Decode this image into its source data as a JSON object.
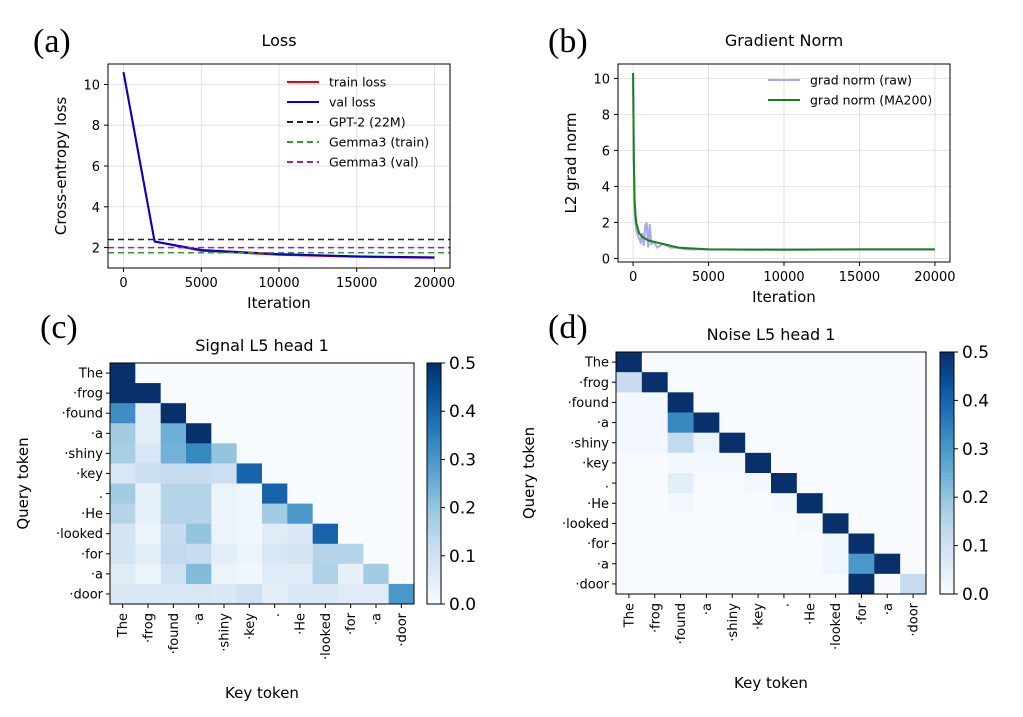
{
  "panels": {
    "a": "(a)",
    "b": "(b)",
    "c": "(c)",
    "d": "(d)"
  },
  "chart_data": [
    {
      "type": "line",
      "title": "Loss",
      "xlabel": "Iteration",
      "ylabel": "Cross-entropy loss",
      "xlim": [
        -1000,
        21000
      ],
      "ylim": [
        1.0,
        11.0
      ],
      "xticks": [
        0,
        5000,
        10000,
        15000,
        20000
      ],
      "yticks": [
        2,
        4,
        6,
        8,
        10
      ],
      "grid": true,
      "legend_position": "top-right",
      "series": [
        {
          "name": "train loss",
          "color": "#ff0000",
          "style": "solid",
          "x": [
            0,
            2000,
            5000,
            10000,
            15000,
            20000
          ],
          "y": [
            10.6,
            2.3,
            1.85,
            1.65,
            1.55,
            1.5
          ]
        },
        {
          "name": "val loss",
          "color": "#0000dd",
          "style": "solid",
          "x": [
            0,
            2000,
            5000,
            10000,
            15000,
            20000
          ],
          "y": [
            10.6,
            2.3,
            1.88,
            1.68,
            1.57,
            1.52
          ]
        },
        {
          "name": "GPT-2 (22M)",
          "color": "#222222",
          "style": "dashed",
          "hline": 2.4
        },
        {
          "name": "Gemma3 (train)",
          "color": "#2ca02c",
          "style": "dashed",
          "hline": 1.75
        },
        {
          "name": "Gemma3 (val)",
          "color": "#a020a0",
          "style": "dashed",
          "hline": 2.0
        }
      ]
    },
    {
      "type": "line",
      "title": "Gradient Norm",
      "xlabel": "Iteration",
      "ylabel": "L2 grad norm",
      "xlim": [
        -1000,
        21000
      ],
      "ylim": [
        -0.2,
        10.8
      ],
      "xticks": [
        0,
        5000,
        10000,
        15000,
        20000
      ],
      "yticks": [
        0,
        2,
        4,
        6,
        8,
        10
      ],
      "grid": true,
      "legend_position": "top-right",
      "series": [
        {
          "name": "grad norm (raw)",
          "color": "#a8a8f0",
          "style": "solid",
          "x": [
            0,
            50,
            100,
            200,
            300,
            400,
            500,
            600,
            700,
            800,
            900,
            1000,
            1100,
            1200,
            1400,
            1600,
            1800,
            2000,
            2500,
            3000,
            3500,
            5000,
            10000,
            15000,
            20000
          ],
          "y": [
            10.2,
            6.0,
            2.5,
            1.6,
            1.3,
            1.1,
            0.9,
            1.4,
            0.7,
            1.8,
            2.0,
            0.6,
            1.9,
            0.8,
            0.9,
            0.6,
            0.7,
            0.8,
            0.6,
            0.6,
            0.5,
            0.5,
            0.5,
            0.5,
            0.5
          ]
        },
        {
          "name": "grad norm (MA200)",
          "color": "#1a7f1a",
          "style": "solid",
          "x": [
            0,
            50,
            100,
            200,
            400,
            600,
            800,
            1000,
            1500,
            2000,
            2500,
            3000,
            4000,
            5000,
            10000,
            15000,
            20000
          ],
          "y": [
            10.3,
            5.5,
            3.2,
            2.0,
            1.4,
            1.2,
            1.1,
            1.0,
            0.9,
            0.8,
            0.7,
            0.6,
            0.55,
            0.5,
            0.48,
            0.5,
            0.5
          ]
        }
      ]
    },
    {
      "type": "heatmap",
      "title": "Signal L5 head 1",
      "xlabel": "Key token",
      "ylabel": "Query token",
      "tokens": [
        "The",
        "·frog",
        "·found",
        "·a",
        "·shiny",
        "·key",
        ".",
        "·He",
        "·looked",
        "·for",
        "·a",
        "·door"
      ],
      "vmin": 0.0,
      "vmax": 0.5,
      "colorbar_ticks": [
        0.0,
        0.1,
        0.2,
        0.3,
        0.4,
        0.5
      ],
      "matrix": [
        [
          0.5,
          0.0,
          0.0,
          0.0,
          0.0,
          0.0,
          0.0,
          0.0,
          0.0,
          0.0,
          0.0,
          0.0
        ],
        [
          0.5,
          0.5,
          0.0,
          0.0,
          0.0,
          0.0,
          0.0,
          0.0,
          0.0,
          0.0,
          0.0,
          0.0
        ],
        [
          0.32,
          0.05,
          0.5,
          0.0,
          0.0,
          0.0,
          0.0,
          0.0,
          0.0,
          0.0,
          0.0,
          0.0
        ],
        [
          0.18,
          0.05,
          0.25,
          0.5,
          0.0,
          0.0,
          0.0,
          0.0,
          0.0,
          0.0,
          0.0,
          0.0
        ],
        [
          0.17,
          0.08,
          0.24,
          0.33,
          0.2,
          0.0,
          0.0,
          0.0,
          0.0,
          0.0,
          0.0,
          0.0
        ],
        [
          0.08,
          0.11,
          0.12,
          0.12,
          0.11,
          0.4,
          0.0,
          0.0,
          0.0,
          0.0,
          0.0,
          0.0
        ],
        [
          0.18,
          0.04,
          0.15,
          0.15,
          0.03,
          0.02,
          0.4,
          0.0,
          0.0,
          0.0,
          0.0,
          0.0
        ],
        [
          0.15,
          0.04,
          0.15,
          0.15,
          0.03,
          0.02,
          0.18,
          0.3,
          0.0,
          0.0,
          0.0,
          0.0
        ],
        [
          0.09,
          0.03,
          0.12,
          0.2,
          0.03,
          0.02,
          0.06,
          0.07,
          0.4,
          0.0,
          0.0,
          0.0
        ],
        [
          0.09,
          0.05,
          0.13,
          0.12,
          0.05,
          0.03,
          0.08,
          0.09,
          0.15,
          0.15,
          0.0,
          0.0
        ],
        [
          0.06,
          0.03,
          0.1,
          0.22,
          0.03,
          0.02,
          0.06,
          0.06,
          0.16,
          0.04,
          0.18,
          0.0
        ],
        [
          0.07,
          0.07,
          0.07,
          0.08,
          0.07,
          0.1,
          0.05,
          0.07,
          0.07,
          0.06,
          0.06,
          0.3
        ]
      ]
    },
    {
      "type": "heatmap",
      "title": "Noise L5 head 1",
      "xlabel": "Key token",
      "ylabel": "Query token",
      "tokens": [
        "The",
        "·frog",
        "·found",
        "·a",
        "·shiny",
        "·key",
        ".",
        "·He",
        "·looked",
        "·for",
        "·a",
        "·door"
      ],
      "vmin": 0.0,
      "vmax": 0.5,
      "colorbar_ticks": [
        0.0,
        0.1,
        0.2,
        0.3,
        0.4,
        0.5
      ],
      "matrix": [
        [
          0.5,
          0.0,
          0.0,
          0.0,
          0.0,
          0.0,
          0.0,
          0.0,
          0.0,
          0.0,
          0.0,
          0.0
        ],
        [
          0.12,
          0.5,
          0.0,
          0.0,
          0.0,
          0.0,
          0.0,
          0.0,
          0.0,
          0.0,
          0.0,
          0.0
        ],
        [
          0.01,
          0.01,
          0.5,
          0.0,
          0.0,
          0.0,
          0.0,
          0.0,
          0.0,
          0.0,
          0.0,
          0.0
        ],
        [
          0.01,
          0.01,
          0.33,
          0.5,
          0.0,
          0.0,
          0.0,
          0.0,
          0.0,
          0.0,
          0.0,
          0.0
        ],
        [
          0.01,
          0.01,
          0.13,
          0.03,
          0.5,
          0.0,
          0.0,
          0.0,
          0.0,
          0.0,
          0.0,
          0.0
        ],
        [
          0.0,
          0.0,
          0.01,
          0.01,
          0.01,
          0.5,
          0.0,
          0.0,
          0.0,
          0.0,
          0.0,
          0.0
        ],
        [
          0.0,
          0.0,
          0.05,
          0.0,
          0.0,
          0.01,
          0.5,
          0.0,
          0.0,
          0.0,
          0.0,
          0.0
        ],
        [
          0.0,
          0.0,
          0.01,
          0.0,
          0.0,
          0.0,
          0.01,
          0.5,
          0.0,
          0.0,
          0.0,
          0.0
        ],
        [
          0.0,
          0.0,
          0.0,
          0.0,
          0.0,
          0.0,
          0.0,
          0.01,
          0.5,
          0.0,
          0.0,
          0.0
        ],
        [
          0.0,
          0.0,
          0.0,
          0.0,
          0.0,
          0.0,
          0.0,
          0.0,
          0.02,
          0.5,
          0.0,
          0.0
        ],
        [
          0.0,
          0.0,
          0.0,
          0.0,
          0.0,
          0.0,
          0.0,
          0.0,
          0.02,
          0.3,
          0.5,
          0.0
        ],
        [
          0.0,
          0.0,
          0.0,
          0.0,
          0.0,
          0.0,
          0.0,
          0.0,
          0.0,
          0.5,
          0.0,
          0.12
        ]
      ]
    }
  ]
}
